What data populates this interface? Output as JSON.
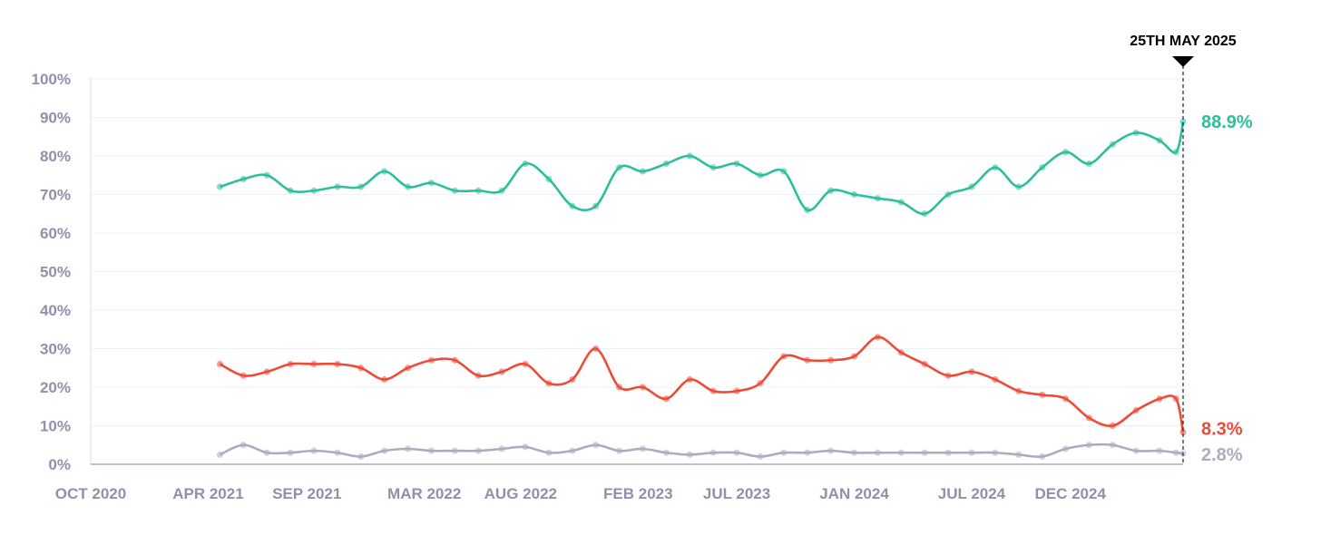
{
  "chart_data": {
    "type": "line",
    "title": "",
    "xlabel": "",
    "ylabel": "",
    "ylim": [
      0,
      100
    ],
    "xlim": [
      2020.75,
      2025.4
    ],
    "grid": true,
    "yticks": [
      0,
      10,
      20,
      30,
      40,
      50,
      60,
      70,
      80,
      90,
      100
    ],
    "ytick_labels": [
      "0%",
      "10%",
      "20%",
      "30%",
      "40%",
      "50%",
      "60%",
      "70%",
      "80%",
      "90%",
      "100%"
    ],
    "xticks": [
      2020.75,
      2021.25,
      2021.67,
      2022.17,
      2022.58,
      2023.08,
      2023.5,
      2024.0,
      2024.5,
      2024.92
    ],
    "xtick_labels": [
      "OCT 2020",
      "APR 2021",
      "SEP 2021",
      "MAR 2022",
      "AUG 2022",
      "FEB 2023",
      "JUL 2023",
      "JAN 2024",
      "JUL 2024",
      "DEC 2024"
    ],
    "marker": {
      "x": 2025.4,
      "label": "25TH MAY 2025"
    },
    "x": [
      2021.3,
      2021.4,
      2021.5,
      2021.6,
      2021.7,
      2021.8,
      2021.9,
      2022.0,
      2022.1,
      2022.2,
      2022.3,
      2022.4,
      2022.5,
      2022.6,
      2022.7,
      2022.8,
      2022.9,
      2023.0,
      2023.1,
      2023.2,
      2023.3,
      2023.4,
      2023.5,
      2023.6,
      2023.7,
      2023.8,
      2023.9,
      2024.0,
      2024.1,
      2024.2,
      2024.3,
      2024.4,
      2024.5,
      2024.6,
      2024.7,
      2024.8,
      2024.9,
      2025.0,
      2025.1,
      2025.2,
      2025.3,
      2025.37,
      2025.4
    ],
    "series": [
      {
        "name": "green",
        "color": "#2bbf9b",
        "end_label": "88.9%",
        "values": [
          72,
          74,
          75,
          71,
          71,
          72,
          72,
          76,
          72,
          73,
          71,
          71,
          71,
          78,
          74,
          67,
          67,
          77,
          76,
          78,
          80,
          77,
          78,
          75,
          76,
          66,
          71,
          70,
          69,
          68,
          65,
          70,
          72,
          77,
          72,
          77,
          81,
          78,
          83,
          86,
          84,
          81,
          88.9
        ]
      },
      {
        "name": "red",
        "color": "#ee4b36",
        "end_label": "8.3%",
        "values": [
          26,
          23,
          24,
          26,
          26,
          26,
          25,
          22,
          25,
          27,
          27,
          23,
          24,
          26,
          21,
          22,
          30,
          20,
          20,
          17,
          22,
          19,
          19,
          21,
          28,
          27,
          27,
          28,
          33,
          29,
          26,
          23,
          24,
          22,
          19,
          18,
          17,
          12,
          10,
          14,
          17,
          17,
          8.3
        ]
      },
      {
        "name": "gray",
        "color": "#a9adbf",
        "end_label": "2.8%",
        "values": [
          2.5,
          5,
          3,
          3,
          3.5,
          3,
          2,
          3.5,
          4,
          3.5,
          3.5,
          3.5,
          4,
          4.5,
          3,
          3.5,
          5,
          3.5,
          4,
          3,
          2.5,
          3,
          3,
          2,
          3,
          3,
          3.5,
          3,
          3,
          3,
          3,
          3,
          3,
          3,
          2.5,
          2,
          4,
          5,
          5,
          3.5,
          3.5,
          3,
          2.8
        ]
      }
    ]
  }
}
